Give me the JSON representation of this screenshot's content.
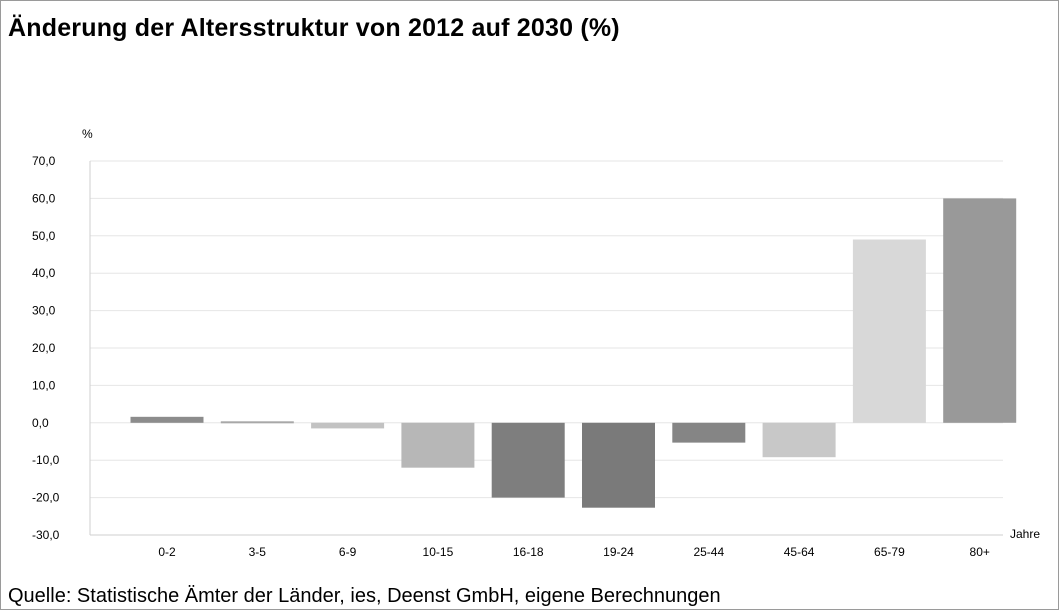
{
  "title": "Änderung der Altersstruktur von 2012 auf 2030 (%)",
  "source": "Quelle: Statistische Ämter der Länder, ies, Deenst GmbH, eigene Berechnungen",
  "chart_data": {
    "type": "bar",
    "title": "Änderung der Altersstruktur von 2012 auf 2030 (%)",
    "ylabel": "%",
    "xlabel": "Jahre",
    "ylim": [
      -30,
      70
    ],
    "yticks": [
      70,
      60,
      50,
      40,
      30,
      20,
      10,
      0,
      -10,
      -20,
      -30
    ],
    "ytick_labels": [
      "70,0",
      "60,0",
      "50,0",
      "40,0",
      "30,0",
      "20,0",
      "10,0",
      "0,0",
      "-10,0",
      "-20,0",
      "-30,0"
    ],
    "grid": true,
    "categories": [
      "0-2",
      "3-5",
      "6-9",
      "10-15",
      "16-18",
      "19-24",
      "25-44",
      "45-64",
      "65-79",
      "80+"
    ],
    "values": [
      1.6,
      0.4,
      -1.5,
      -12.0,
      -20.0,
      -22.7,
      -5.3,
      -9.2,
      49.0,
      60.0
    ],
    "colors": [
      "#8c8c8c",
      "#a8a8a8",
      "#c2c2c2",
      "#b7b7b7",
      "#7e7e7e",
      "#7a7a7a",
      "#858585",
      "#c8c8c8",
      "#d8d8d8",
      "#999999"
    ]
  }
}
